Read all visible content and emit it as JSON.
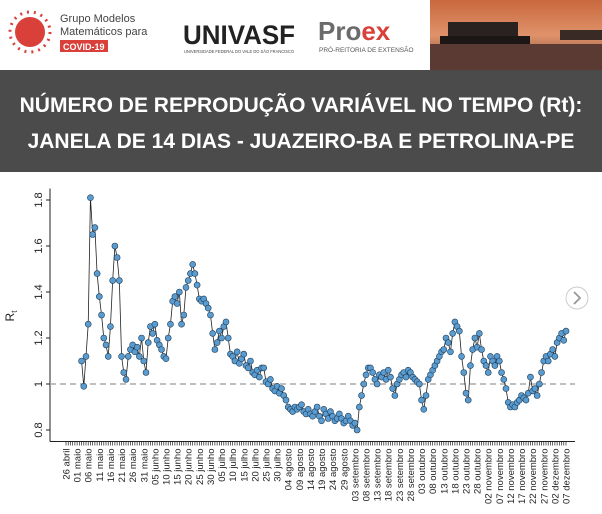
{
  "header": {
    "group_line1": "Grupo Modelos",
    "group_line2": "Matemáticos para",
    "group_badge": "COVID-19",
    "univasf": "UNIVASF",
    "univasf_sub": "UNIVERSIDADE FEDERAL DO VALE DO SÃO FRANCISCO",
    "proex_a": "Pro",
    "proex_b": "ex",
    "proex_sub": "PRÓ-REITORIA DE EXTENSÃO"
  },
  "chart_data": {
    "type": "line",
    "title": [
      "NÚMERO DE REPRODUÇÃO VARIÁVEL NO TEMPO (Rt):",
      "JANELA DE 14 DIAS - JUAZEIRO-BA E PETROLINA-PE"
    ],
    "ylabel": "R",
    "ylabel_sub": "t",
    "ylim": [
      0.75,
      1.85
    ],
    "yticks": [
      0.8,
      1.0,
      1.2,
      1.4,
      1.6,
      1.8
    ],
    "reference_line": 1.0,
    "color": "#5a9bd0",
    "line_color": "#222222",
    "categories": [
      "26 abril",
      null,
      null,
      null,
      null,
      "01 maio",
      null,
      null,
      null,
      null,
      "06 maio",
      null,
      null,
      null,
      null,
      "11 maio",
      null,
      null,
      null,
      null,
      "16 maio",
      null,
      null,
      null,
      null,
      "21 maio",
      null,
      null,
      null,
      null,
      "26 maio",
      null,
      null,
      null,
      null,
      "31 maio",
      null,
      null,
      null,
      null,
      "05 junho",
      null,
      null,
      null,
      null,
      "10 junho",
      null,
      null,
      null,
      null,
      "15 junho",
      null,
      null,
      null,
      null,
      "20 junho",
      null,
      null,
      null,
      null,
      "25 junho",
      null,
      null,
      null,
      null,
      "30 junho",
      null,
      null,
      null,
      null,
      "05 julho",
      null,
      null,
      null,
      null,
      "10 julho",
      null,
      null,
      null,
      null,
      "15 julho",
      null,
      null,
      null,
      null,
      "20 julho",
      null,
      null,
      null,
      null,
      "25 julho",
      null,
      null,
      null,
      null,
      "30 julho",
      null,
      null,
      null,
      null,
      "04 agosto",
      null,
      null,
      null,
      null,
      "09 agosto",
      null,
      null,
      null,
      null,
      "14 agosto",
      null,
      null,
      null,
      null,
      "19 agosto",
      null,
      null,
      null,
      null,
      "24 agosto",
      null,
      null,
      null,
      null,
      "29 agosto",
      null,
      null,
      null,
      null,
      "03 setembro",
      null,
      null,
      null,
      null,
      "08 setembro",
      null,
      null,
      null,
      null,
      "13 setembro",
      null,
      null,
      null,
      null,
      "18 setembro",
      null,
      null,
      null,
      null,
      "23 setembro",
      null,
      null,
      null,
      null,
      "28 setembro",
      null,
      null,
      null,
      null,
      "03 outubro",
      null,
      null,
      null,
      null,
      "08 outubro",
      null,
      null,
      null,
      null,
      "13 outubro",
      null,
      null,
      null,
      null,
      "18 outubro",
      null,
      null,
      null,
      null,
      "23 outubro",
      null,
      null,
      null,
      null,
      "28 outubro",
      null,
      null,
      null,
      null,
      "02 novembro",
      null,
      null,
      null,
      null,
      "07 novembro",
      null,
      null,
      null,
      null,
      "12 novembro",
      null,
      null,
      null,
      null,
      "17 novembro",
      null,
      null,
      null,
      null,
      "22 novembro",
      null,
      null,
      null,
      null,
      "27 novembro",
      null,
      null,
      null,
      null,
      "02 dezembro",
      null,
      null,
      null,
      null,
      "07 dezembro"
    ],
    "values": [
      null,
      null,
      null,
      null,
      null,
      null,
      null,
      1.1,
      0.99,
      1.12,
      1.26,
      1.81,
      1.65,
      1.68,
      1.48,
      1.38,
      1.3,
      1.2,
      1.17,
      1.12,
      1.25,
      1.45,
      1.6,
      1.55,
      1.45,
      1.12,
      1.05,
      1.02,
      1.12,
      1.15,
      1.17,
      1.14,
      1.16,
      1.12,
      1.2,
      1.1,
      1.05,
      1.18,
      1.25,
      1.22,
      1.26,
      1.19,
      1.17,
      1.15,
      1.12,
      1.11,
      1.2,
      1.26,
      1.36,
      1.38,
      1.35,
      1.4,
      1.26,
      1.3,
      1.42,
      1.45,
      1.48,
      1.52,
      1.48,
      1.43,
      1.37,
      1.36,
      1.37,
      1.35,
      1.33,
      1.3,
      1.22,
      1.15,
      1.18,
      1.23,
      1.2,
      1.25,
      1.27,
      1.2,
      1.13,
      1.12,
      1.1,
      1.14,
      1.09,
      1.11,
      1.13,
      1.08,
      1.07,
      1.1,
      1.05,
      1.04,
      1.06,
      1.03,
      1.07,
      1.07,
      1.01,
      1.0,
      1.02,
      0.98,
      0.97,
      0.99,
      0.96,
      0.98,
      0.95,
      0.93,
      0.9,
      0.89,
      0.88,
      0.9,
      0.89,
      0.9,
      0.91,
      0.88,
      0.87,
      0.89,
      0.87,
      0.86,
      0.88,
      0.9,
      0.86,
      0.84,
      0.89,
      0.87,
      0.85,
      0.88,
      0.86,
      0.84,
      0.85,
      0.87,
      0.85,
      0.83,
      0.84,
      0.86,
      0.84,
      0.82,
      0.83,
      0.8,
      0.9,
      0.95,
      1.0,
      1.04,
      1.07,
      1.07,
      1.05,
      1.02,
      1.0,
      1.04,
      1.03,
      1.05,
      1.02,
      1.06,
      1.03,
      0.98,
      0.95,
      1.0,
      1.02,
      1.04,
      1.05,
      1.03,
      1.06,
      1.05,
      1.03,
      1.02,
      1.01,
      1.0,
      0.93,
      0.89,
      0.95,
      1.02,
      1.04,
      1.06,
      1.08,
      1.1,
      1.12,
      1.14,
      1.15,
      1.2,
      1.18,
      1.14,
      1.22,
      1.27,
      1.25,
      1.23,
      1.12,
      1.05,
      0.96,
      0.93,
      1.08,
      1.15,
      1.2,
      1.16,
      1.22,
      1.15,
      1.1,
      1.08,
      1.05,
      1.12,
      1.1,
      1.08,
      1.12,
      1.1,
      1.05,
      1.02,
      0.98,
      0.92,
      0.9,
      0.91,
      0.9,
      0.92,
      0.93,
      0.95,
      0.94,
      0.93,
      0.96,
      1.03,
      0.97,
      0.98,
      0.95,
      1.0,
      1.05,
      1.1,
      1.12,
      1.1,
      1.13,
      1.15,
      1.12,
      1.18,
      1.2,
      1.22,
      1.19,
      1.23
    ]
  }
}
